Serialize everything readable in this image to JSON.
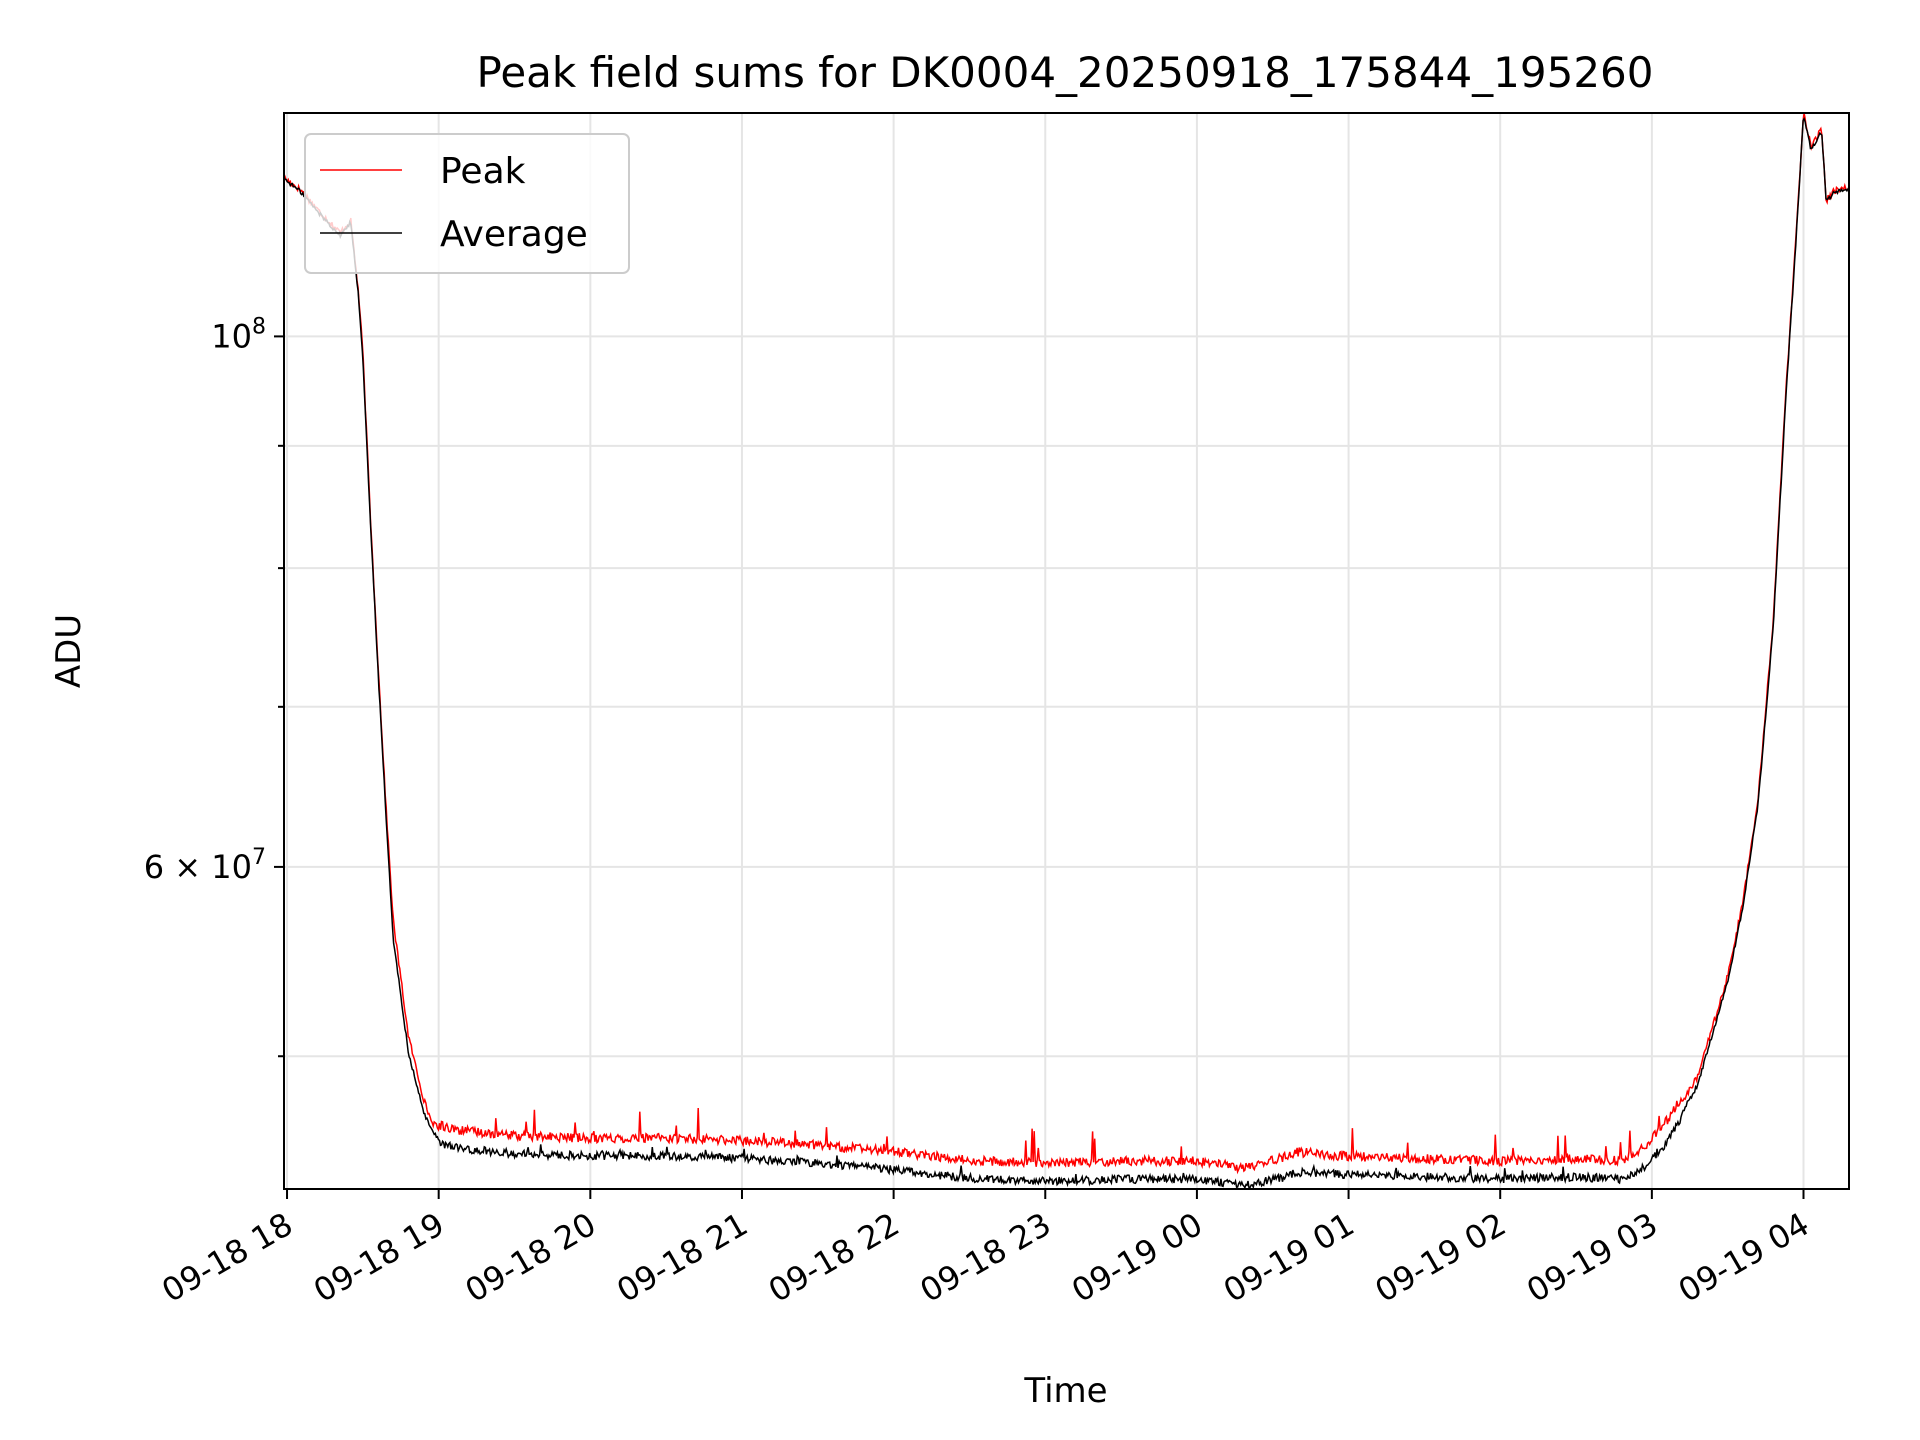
{
  "chart_data": {
    "type": "line",
    "title": "Peak field sums for DK0004_20250918_175844_195260",
    "xlabel": "Time",
    "ylabel": "ADU",
    "yscale": "log",
    "ylim": [
      44000000,
      124000000
    ],
    "xlim_hours": [
      17.98,
      28.3
    ],
    "grid": true,
    "legend_position": "upper-left",
    "x_tick_labels": [
      "09-18 18",
      "09-18 19",
      "09-18 20",
      "09-18 21",
      "09-18 22",
      "09-18 23",
      "09-19 00",
      "09-19 01",
      "09-19 02",
      "09-19 03",
      "09-19 04"
    ],
    "x_tick_hours": [
      18,
      19,
      20,
      21,
      22,
      23,
      24,
      25,
      26,
      27,
      28
    ],
    "y_major_ticks": [
      {
        "value": 100000000,
        "base": "10",
        "exp": "8"
      },
      {
        "value": 60000000,
        "base": "6 × 10",
        "exp": "7"
      }
    ],
    "y_minor_ticks": [
      50000000,
      70000000,
      80000000,
      90000000
    ],
    "series": [
      {
        "name": "Peak",
        "color": "#ff0000",
        "x_hours": [
          17.98,
          18.1,
          18.2,
          18.35,
          18.42,
          18.47,
          18.5,
          18.55,
          18.6,
          18.65,
          18.7,
          18.8,
          18.9,
          18.95,
          19.0,
          19.1,
          19.2,
          19.5,
          20.0,
          20.5,
          21.0,
          21.5,
          22.0,
          22.4,
          22.6,
          23.0,
          23.5,
          24.0,
          24.3,
          24.6,
          24.65,
          25.0,
          25.5,
          26.0,
          26.5,
          26.8,
          26.95,
          27.1,
          27.3,
          27.5,
          27.6,
          27.7,
          27.8,
          27.88,
          27.95,
          28.0,
          28.05,
          28.1,
          28.12,
          28.15,
          28.2,
          28.3
        ],
        "values": [
          116500000,
          115000000,
          113000000,
          110500000,
          111800000,
          104500000,
          98500000,
          84000000,
          73000000,
          64000000,
          57000000,
          51000000,
          48000000,
          47000000,
          46600000,
          46400000,
          46300000,
          46100000,
          46000000,
          46000000,
          45900000,
          45700000,
          45400000,
          45100000,
          45000000,
          44900000,
          45000000,
          45000000,
          44700000,
          45200000,
          45400000,
          45200000,
          45100000,
          45000000,
          45100000,
          45000000,
          45600000,
          46800000,
          49000000,
          54000000,
          58000000,
          64000000,
          76000000,
          94000000,
          110000000,
          124000000,
          120000000,
          121500000,
          122000000,
          114000000,
          115000000,
          115500000
        ]
      },
      {
        "name": "Average",
        "color": "#000000",
        "x_hours": [
          17.98,
          18.1,
          18.2,
          18.35,
          18.42,
          18.47,
          18.5,
          18.55,
          18.6,
          18.65,
          18.7,
          18.8,
          18.9,
          18.95,
          19.0,
          19.1,
          19.2,
          19.5,
          20.0,
          20.5,
          21.0,
          21.5,
          22.0,
          22.4,
          22.6,
          23.0,
          23.5,
          24.0,
          24.3,
          24.6,
          24.65,
          25.0,
          25.5,
          26.0,
          26.5,
          26.8,
          26.95,
          27.1,
          27.3,
          27.5,
          27.6,
          27.7,
          27.8,
          27.88,
          27.95,
          28.0,
          28.05,
          28.1,
          28.12,
          28.15,
          28.2,
          28.3
        ],
        "values": [
          116400000,
          114800000,
          112800000,
          110200000,
          111600000,
          104200000,
          98000000,
          83500000,
          72500000,
          63500000,
          56000000,
          50200000,
          47400000,
          46600000,
          46200000,
          46000000,
          45900000,
          45700000,
          45600000,
          45600000,
          45500000,
          45300000,
          45000000,
          44700000,
          44600000,
          44500000,
          44600000,
          44600000,
          44300000,
          44700000,
          44900000,
          44800000,
          44700000,
          44600000,
          44700000,
          44600000,
          45100000,
          46200000,
          48600000,
          53700000,
          57700000,
          63700000,
          75500000,
          93500000,
          109500000,
          123800000,
          119700000,
          121300000,
          121800000,
          113800000,
          114800000,
          115300000
        ]
      }
    ]
  }
}
